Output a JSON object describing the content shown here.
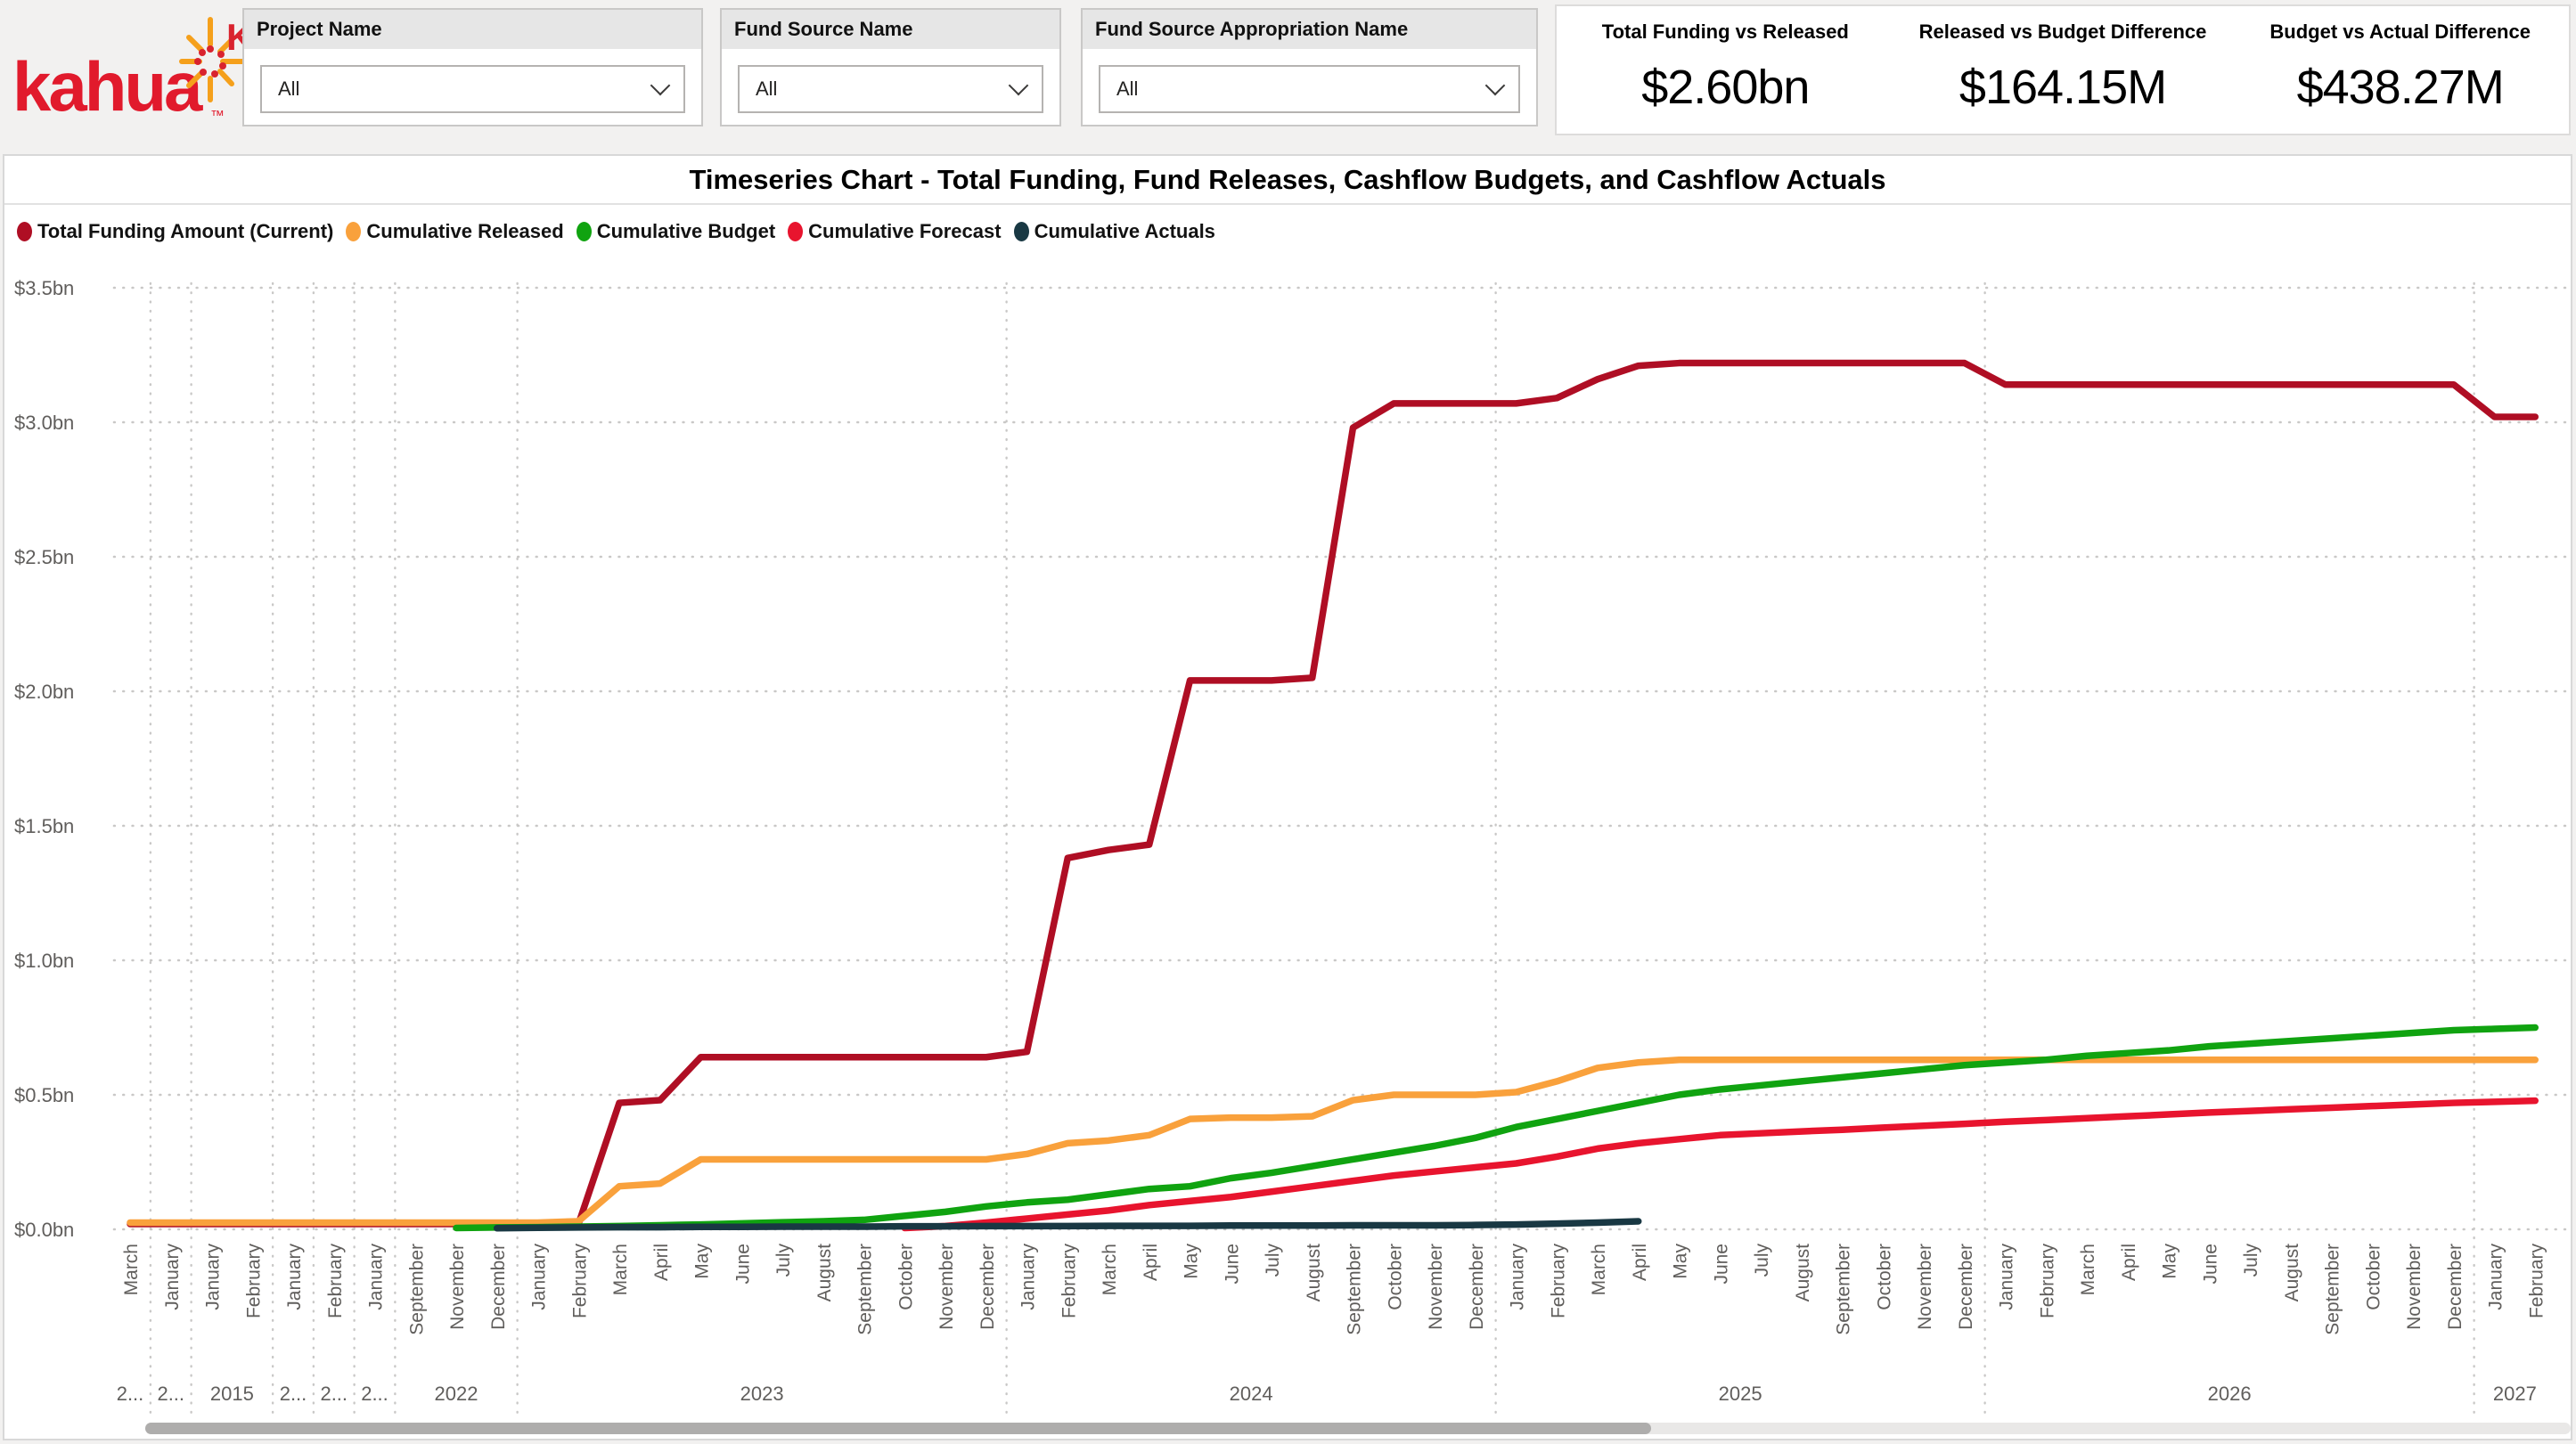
{
  "logo": {
    "text": "kahua",
    "tm": "™",
    "brand_color": "#e11a2c",
    "burst_color": "#f5a01b"
  },
  "filters": [
    {
      "label": "Project Name",
      "value": "All"
    },
    {
      "label": "Fund Source Name",
      "value": "All"
    },
    {
      "label": "Fund Source Appropriation Name",
      "value": "All"
    }
  ],
  "kpis": [
    {
      "label": "Total Funding vs Released",
      "value": "$2.60bn"
    },
    {
      "label": "Released vs Budget Difference",
      "value": "$164.15M"
    },
    {
      "label": "Budget vs Actual Difference",
      "value": "$438.27M"
    }
  ],
  "chart_data": {
    "type": "line",
    "title": "Timeseries Chart - Total Funding, Fund Releases, Cashflow Budgets, and Cashflow Actuals",
    "xlabel": "",
    "ylabel": "",
    "ylim": [
      0,
      3.5
    ],
    "grid": "dotted horizontal gridlines + dotted year separators",
    "legend_position": "top-left",
    "y_ticks": [
      {
        "label": "$3.5bn",
        "value": 3.5
      },
      {
        "label": "$3.0bn",
        "value": 3.0
      },
      {
        "label": "$2.5bn",
        "value": 2.5
      },
      {
        "label": "$2.0bn",
        "value": 2.0
      },
      {
        "label": "$1.5bn",
        "value": 1.5
      },
      {
        "label": "$1.0bn",
        "value": 1.0
      },
      {
        "label": "$0.5bn",
        "value": 0.5
      },
      {
        "label": "$0.0bn",
        "value": 0.0
      }
    ],
    "months": [
      "March",
      "January",
      "January",
      "February",
      "January",
      "February",
      "January",
      "September",
      "November",
      "December",
      "January",
      "February",
      "March",
      "April",
      "May",
      "June",
      "July",
      "August",
      "September",
      "October",
      "November",
      "December",
      "January",
      "February",
      "March",
      "April",
      "May",
      "June",
      "July",
      "August",
      "September",
      "October",
      "November",
      "December",
      "January",
      "February",
      "March",
      "April",
      "May",
      "June",
      "July",
      "August",
      "September",
      "October",
      "November",
      "December",
      "January",
      "February",
      "March",
      "April",
      "May",
      "June",
      "July",
      "August",
      "September",
      "October",
      "November",
      "December",
      "January",
      "February"
    ],
    "year_groups": [
      {
        "label": "2...",
        "count": 1
      },
      {
        "label": "2...",
        "count": 1
      },
      {
        "label": "2015",
        "count": 2
      },
      {
        "label": "2...",
        "count": 1
      },
      {
        "label": "2...",
        "count": 1
      },
      {
        "label": "2...",
        "count": 1
      },
      {
        "label": "2022",
        "count": 3
      },
      {
        "label": "2023",
        "count": 12
      },
      {
        "label": "2024",
        "count": 12
      },
      {
        "label": "2025",
        "count": 12
      },
      {
        "label": "2026",
        "count": 12
      },
      {
        "label": "2027",
        "count": 2
      }
    ],
    "unit": "USD bn",
    "series": [
      {
        "name": "Total Funding Amount (Current)",
        "color": "#AF0E24",
        "values": [
          0.02,
          0.02,
          0.02,
          0.02,
          0.02,
          0.02,
          0.02,
          0.02,
          0.02,
          0.02,
          0.02,
          0.02,
          0.47,
          0.48,
          0.64,
          0.64,
          0.64,
          0.64,
          0.64,
          0.64,
          0.64,
          0.64,
          0.66,
          1.38,
          1.41,
          1.43,
          2.04,
          2.04,
          2.04,
          2.05,
          2.98,
          3.07,
          3.07,
          3.07,
          3.07,
          3.09,
          3.16,
          3.21,
          3.22,
          3.22,
          3.22,
          3.22,
          3.22,
          3.22,
          3.22,
          3.22,
          3.14,
          3.14,
          3.14,
          3.14,
          3.14,
          3.14,
          3.14,
          3.14,
          3.14,
          3.14,
          3.14,
          3.14,
          3.02,
          3.02
        ]
      },
      {
        "name": "Cumulative Released",
        "color": "#F9A13C",
        "values": [
          0.025,
          0.025,
          0.025,
          0.025,
          0.025,
          0.025,
          0.025,
          0.025,
          0.025,
          0.025,
          0.025,
          0.03,
          0.16,
          0.17,
          0.26,
          0.26,
          0.26,
          0.26,
          0.26,
          0.26,
          0.26,
          0.26,
          0.28,
          0.32,
          0.33,
          0.35,
          0.41,
          0.415,
          0.415,
          0.42,
          0.48,
          0.5,
          0.5,
          0.5,
          0.51,
          0.55,
          0.6,
          0.62,
          0.63,
          0.63,
          0.63,
          0.63,
          0.63,
          0.63,
          0.63,
          0.63,
          0.63,
          0.63,
          0.63,
          0.63,
          0.63,
          0.63,
          0.63,
          0.63,
          0.63,
          0.63,
          0.63,
          0.63,
          0.63,
          0.63
        ]
      },
      {
        "name": "Cumulative Budget",
        "color": "#10A310",
        "values": [
          null,
          null,
          null,
          null,
          null,
          null,
          null,
          null,
          0.005,
          0.007,
          0.008,
          0.01,
          0.012,
          0.015,
          0.018,
          0.022,
          0.026,
          0.03,
          0.035,
          0.05,
          0.065,
          0.085,
          0.1,
          0.11,
          0.13,
          0.15,
          0.16,
          0.19,
          0.21,
          0.235,
          0.26,
          0.285,
          0.31,
          0.34,
          0.38,
          0.41,
          0.44,
          0.47,
          0.5,
          0.52,
          0.535,
          0.55,
          0.565,
          0.58,
          0.595,
          0.61,
          0.62,
          0.63,
          0.645,
          0.655,
          0.665,
          0.68,
          0.69,
          0.7,
          0.71,
          0.72,
          0.73,
          0.74,
          0.745,
          0.75
        ]
      },
      {
        "name": "Cumulative Forecast",
        "color": "#E8142E",
        "values": [
          null,
          null,
          null,
          null,
          null,
          null,
          null,
          null,
          null,
          null,
          null,
          null,
          null,
          null,
          null,
          null,
          null,
          null,
          null,
          0.005,
          0.012,
          0.025,
          0.04,
          0.055,
          0.07,
          0.09,
          0.105,
          0.12,
          0.14,
          0.16,
          0.18,
          0.2,
          0.215,
          0.23,
          0.245,
          0.27,
          0.3,
          0.32,
          0.335,
          0.35,
          0.357,
          0.364,
          0.37,
          0.378,
          0.385,
          0.392,
          0.4,
          0.406,
          0.413,
          0.42,
          0.427,
          0.434,
          0.44,
          0.446,
          0.452,
          0.458,
          0.464,
          0.47,
          0.474,
          0.478
        ]
      },
      {
        "name": "Cumulative Actuals",
        "color": "#193843",
        "values": [
          null,
          null,
          null,
          null,
          null,
          null,
          null,
          null,
          null,
          0.004,
          0.006,
          0.007,
          0.008,
          0.008,
          0.009,
          0.009,
          0.01,
          0.01,
          0.01,
          0.011,
          0.011,
          0.012,
          0.012,
          0.012,
          0.013,
          0.013,
          0.013,
          0.014,
          0.014,
          0.014,
          0.015,
          0.015,
          0.015,
          0.016,
          0.018,
          0.021,
          0.025,
          0.03,
          null,
          null,
          null,
          null,
          null,
          null,
          null,
          null,
          null,
          null,
          null,
          null,
          null,
          null,
          null,
          null,
          null,
          null,
          null,
          null,
          null,
          null
        ]
      }
    ]
  }
}
